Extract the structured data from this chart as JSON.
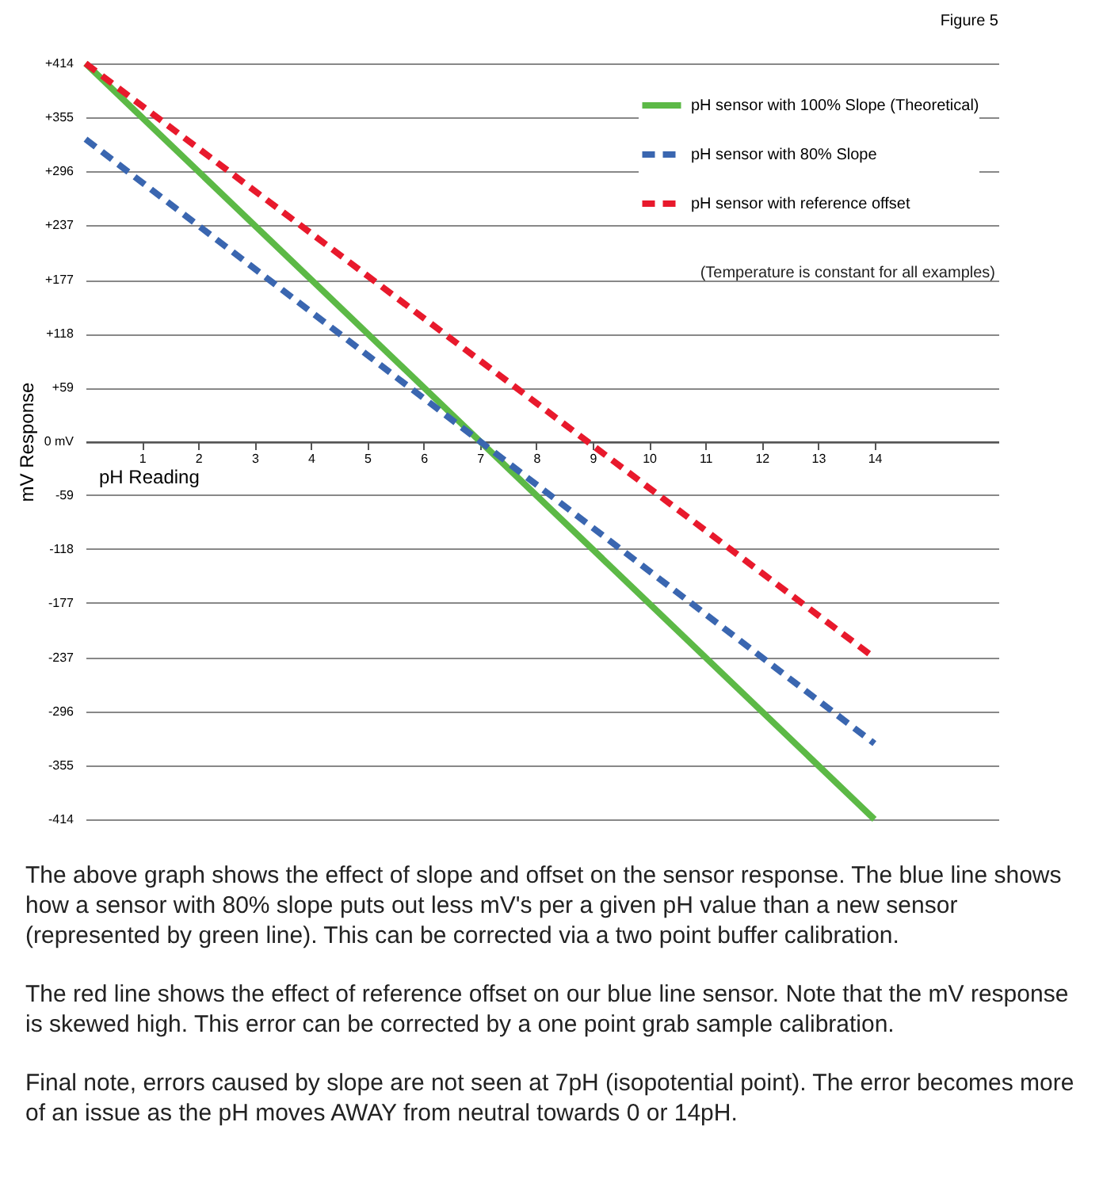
{
  "chart_data": {
    "type": "line",
    "title": "Figure 5",
    "xlabel": "pH Reading",
    "ylabel": "mV Response",
    "x": [
      0,
      14
    ],
    "xlim": [
      0,
      16.2
    ],
    "xticks": [
      1,
      2,
      3,
      4,
      5,
      6,
      7,
      8,
      9,
      10,
      11,
      12,
      13,
      14
    ],
    "ylim": [
      -414,
      414
    ],
    "yticks": [
      {
        "value": 414,
        "label": "+414"
      },
      {
        "value": 355,
        "label": "+355"
      },
      {
        "value": 296,
        "label": "+296"
      },
      {
        "value": 237,
        "label": "+237"
      },
      {
        "value": 177,
        "label": "+177"
      },
      {
        "value": 118,
        "label": "+118"
      },
      {
        "value": 59,
        "label": "+59"
      },
      {
        "value": 0,
        "label": "0 mV"
      },
      -59,
      -118,
      -177,
      -237,
      -296,
      -355,
      -414
    ],
    "grid": "y",
    "legend": "top right",
    "marker": "none",
    "series": [
      {
        "name": "pH sensor with 100% Slope (Theoretical)",
        "color": "#5cb946",
        "line_style": "solid",
        "values": [
          414,
          -414
        ]
      },
      {
        "name": "pH sensor with 80% Slope",
        "color": "#3a66b0",
        "line_style": "dashed",
        "values": [
          331,
          -331
        ]
      },
      {
        "name": "pH sensor with reference offset",
        "color": "#e8192c",
        "line_style": "dashed",
        "values": [
          414,
          -237
        ]
      }
    ],
    "annotations": [
      "(Temperature is constant for all examples)",
      "The above graph shows the effect of slope and offset on the sensor response.  The blue line shows how a sensor with 80% slope puts out less mV's per a given pH value than a new sensor (represented by green line).  This can be corrected via a two point buffer calibration.",
      "The red line shows the effect of reference offset on our blue line sensor.  Note that the mV response is skewed high.  This error can be corrected by a one point grab sample calibration.",
      "Final note, errors caused by slope are not seen at 7pH (isopotential point).  The error becomes more of an issue as the pH moves AWAY from neutral towards 0 or 14pH."
    ]
  }
}
